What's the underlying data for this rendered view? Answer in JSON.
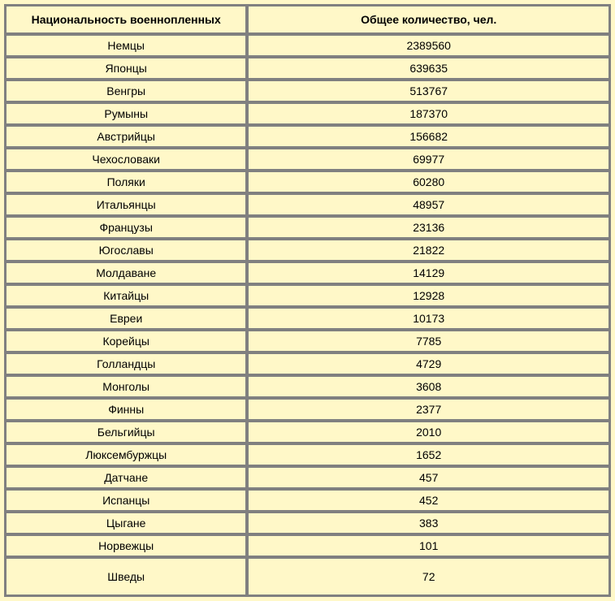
{
  "table": {
    "type": "table",
    "background_color": "#fff8c8",
    "border_color": "#808080",
    "text_color": "#000000",
    "font_family": "Arial",
    "header_fontsize": 14,
    "cell_fontsize": 14,
    "columns": [
      {
        "label": "Национальность военнопленных",
        "width": "40%"
      },
      {
        "label": "Общее количество, чел.",
        "width": "60%"
      }
    ],
    "rows": [
      {
        "nationality": "Немцы",
        "count": "2389560"
      },
      {
        "nationality": "Японцы",
        "count": "639635"
      },
      {
        "nationality": "Венгры",
        "count": "513767"
      },
      {
        "nationality": "Румыны",
        "count": "187370"
      },
      {
        "nationality": "Австрийцы",
        "count": "156682"
      },
      {
        "nationality": "Чехословаки",
        "count": "69977"
      },
      {
        "nationality": "Поляки",
        "count": "60280"
      },
      {
        "nationality": "Итальянцы",
        "count": "48957"
      },
      {
        "nationality": "Французы",
        "count": "23136"
      },
      {
        "nationality": "Югославы",
        "count": "21822"
      },
      {
        "nationality": "Молдаване",
        "count": "14129"
      },
      {
        "nationality": "Китайцы",
        "count": "12928"
      },
      {
        "nationality": "Евреи",
        "count": "10173"
      },
      {
        "nationality": "Корейцы",
        "count": "7785"
      },
      {
        "nationality": "Голландцы",
        "count": "4729"
      },
      {
        "nationality": "Монголы",
        "count": "3608"
      },
      {
        "nationality": "Финны",
        "count": "2377"
      },
      {
        "nationality": "Бельгийцы",
        "count": "2010"
      },
      {
        "nationality": "Люксембуржцы",
        "count": "1652"
      },
      {
        "nationality": "Датчане",
        "count": "457"
      },
      {
        "nationality": "Испанцы",
        "count": "452"
      },
      {
        "nationality": "Цыгане",
        "count": "383"
      },
      {
        "nationality": "Норвежцы",
        "count": "101"
      },
      {
        "nationality": "Шведы",
        "count": "72"
      }
    ]
  }
}
